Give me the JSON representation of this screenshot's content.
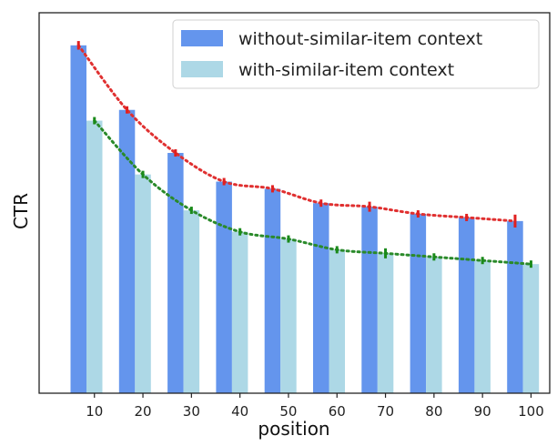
{
  "chart_data": {
    "type": "bar",
    "title": "",
    "xlabel": "position",
    "ylabel": "CTR",
    "categories": [
      "10",
      "20",
      "30",
      "40",
      "50",
      "60",
      "70",
      "80",
      "90",
      "100"
    ],
    "ylim": [
      0,
      1
    ],
    "y_ticks_shown": false,
    "grid": false,
    "legend_position": "top-right",
    "series": [
      {
        "name": "without-similar-item context",
        "color": "#6495ED",
        "values": [
          0.97,
          0.79,
          0.67,
          0.59,
          0.57,
          0.53,
          0.52,
          0.5,
          0.49,
          0.48
        ],
        "errors": [
          0.012,
          0.01,
          0.008,
          0.006,
          0.006,
          0.006,
          0.014,
          0.01,
          0.006,
          0.018
        ],
        "error_color": "#e02020",
        "trend_color": "#e03030"
      },
      {
        "name": "with-similar-item context",
        "color": "#ADD8E6",
        "values": [
          0.76,
          0.61,
          0.51,
          0.45,
          0.43,
          0.4,
          0.39,
          0.38,
          0.37,
          0.36
        ],
        "errors": [
          0.006,
          0.006,
          0.006,
          0.006,
          0.006,
          0.006,
          0.014,
          0.008,
          0.01,
          0.006
        ],
        "error_color": "#1a8a1a",
        "trend_color": "#2a8a2a"
      }
    ]
  }
}
